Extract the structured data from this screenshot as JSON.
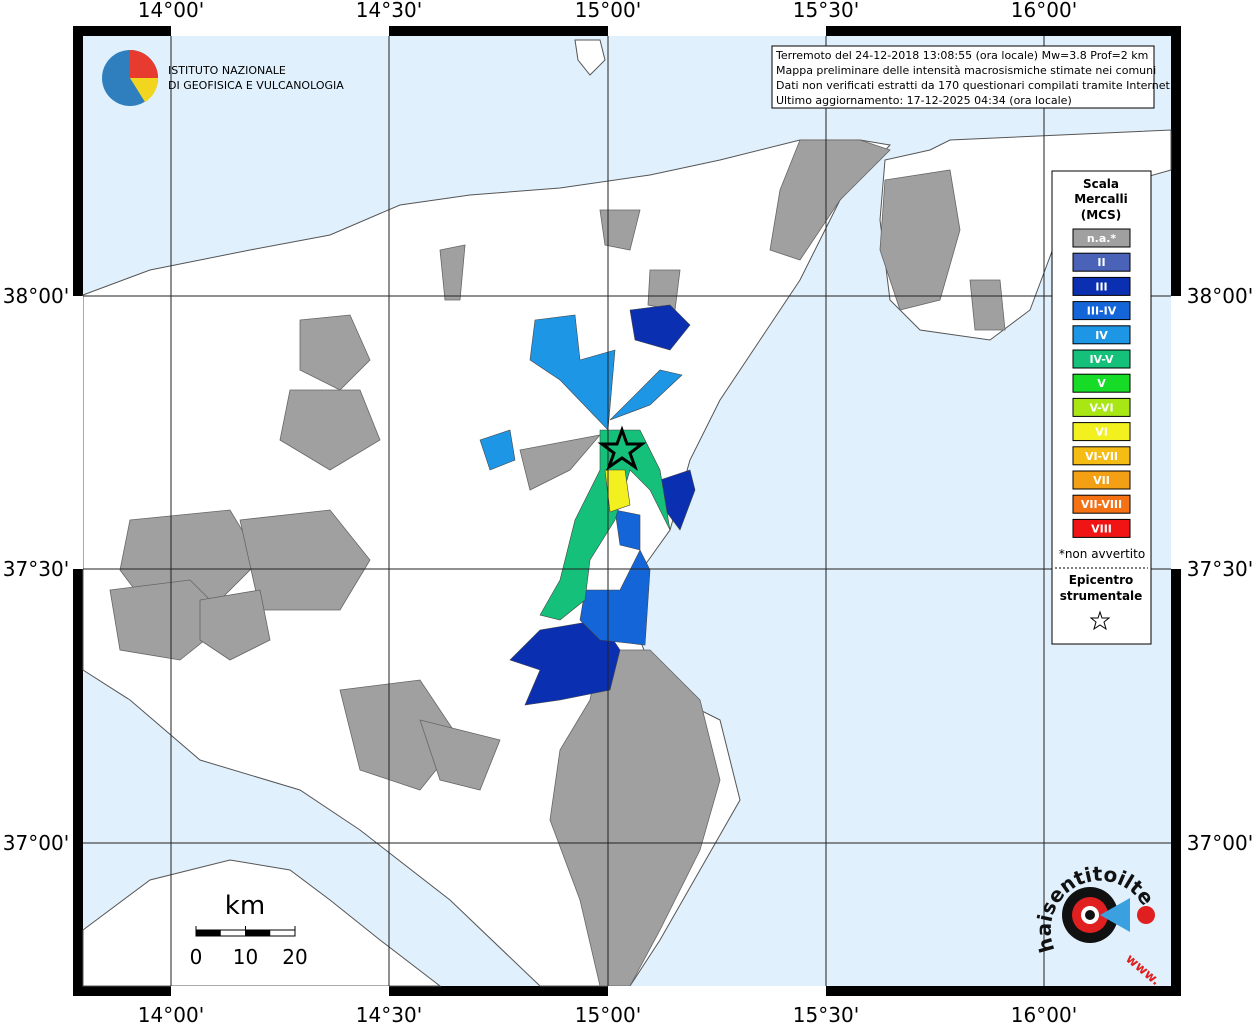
{
  "map": {
    "lon_labels": [
      "14°00'",
      "14°30'",
      "15°00'",
      "15°30'",
      "16°00'"
    ],
    "lat_labels": [
      "38°00'",
      "37°30'",
      "37°00'"
    ],
    "institute": [
      "ISTITUTO NAZIONALE",
      "DI GEOFISICA E VULCANOLOGIA"
    ],
    "info": [
      "Terremoto del 24-12-2018 13:08:55 (ora locale) Mw=3.8 Prof=2 km",
      "Mappa preliminare delle intensità macrosismiche stimate nei comuni",
      "Dati non verificati estratti da 170 questionari compilati tramite Internet.",
      "Ultimo aggiornamento: 17-12-2025 04:34 (ora locale)"
    ],
    "legend": {
      "title": [
        "Scala",
        "Mercalli",
        "(MCS)"
      ],
      "items": [
        {
          "label": "n.a.*",
          "color": "#a0a0a0"
        },
        {
          "label": "II",
          "color": "#4a62b8"
        },
        {
          "label": "III",
          "color": "#0a2fb0"
        },
        {
          "label": "III-IV",
          "color": "#1466d8"
        },
        {
          "label": "IV",
          "color": "#1e96e6"
        },
        {
          "label": "IV-V",
          "color": "#14c07a"
        },
        {
          "label": "V",
          "color": "#16dc28"
        },
        {
          "label": "V-VI",
          "color": "#a8e614"
        },
        {
          "label": "VI",
          "color": "#f2f01e"
        },
        {
          "label": "VI-VII",
          "color": "#f4bc14"
        },
        {
          "label": "VII",
          "color": "#f4a014"
        },
        {
          "label": "VII-VIII",
          "color": "#f47214"
        },
        {
          "label": "VIII",
          "color": "#f01414"
        }
      ],
      "note": "*non avvertito",
      "epicenter": [
        "Epicentro",
        "strumentale"
      ]
    },
    "scale": {
      "unit": "km",
      "ticks": [
        0,
        10,
        20
      ]
    },
    "logo": {
      "ring": "haisentitoilterremoto.it",
      "www": "www."
    }
  }
}
